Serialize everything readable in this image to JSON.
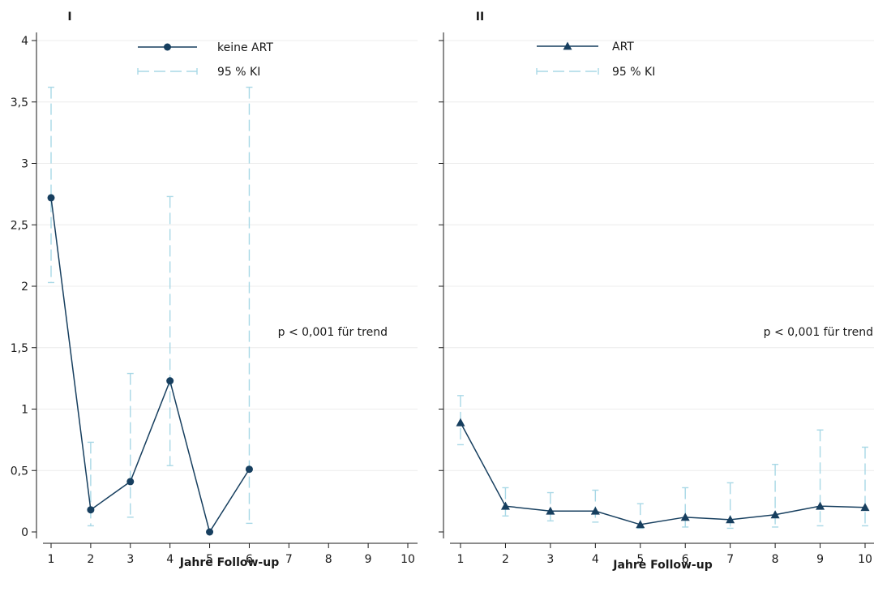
{
  "chart_data": [
    {
      "type": "line",
      "panel_label": "I",
      "xlabel": "Jahre Follow-up",
      "ylabel": "",
      "x_ticks": [
        "1",
        "2",
        "3",
        "4",
        "5",
        "6",
        "7",
        "8",
        "9",
        "10"
      ],
      "y_ticks": [
        "0",
        "0,5",
        "1",
        "1,5",
        "2",
        "2,5",
        "3",
        "3,5",
        "4"
      ],
      "ylim": [
        0,
        4
      ],
      "xlim": [
        1,
        10
      ],
      "grid": true,
      "legend_position": "top",
      "annotation": "p < 0,001 für trend",
      "series": [
        {
          "name": "keine ART",
          "marker": "circle",
          "x": [
            1,
            2,
            3,
            4,
            5,
            6
          ],
          "values": [
            2.72,
            0.18,
            0.41,
            1.23,
            0.0,
            0.51
          ],
          "ci_label": "95 % KI",
          "ci_lower": [
            2.03,
            0.05,
            0.12,
            0.54,
            0.0,
            0.07
          ],
          "ci_upper": [
            3.62,
            0.73,
            1.29,
            2.73,
            0.0,
            3.62
          ]
        }
      ],
      "colors": {
        "line": "#173f5f",
        "ci": "#a8d8e6"
      }
    },
    {
      "type": "line",
      "panel_label": "II",
      "xlabel": "Jahre Follow-up",
      "ylabel": "",
      "x_ticks": [
        "1",
        "2",
        "3",
        "4",
        "5",
        "6",
        "7",
        "8",
        "9",
        "10"
      ],
      "ylim": [
        0,
        4
      ],
      "xlim": [
        1,
        10
      ],
      "grid": true,
      "legend_position": "top",
      "annotation": "p < 0,001 für trend",
      "series": [
        {
          "name": "ART",
          "marker": "triangle",
          "x": [
            1,
            2,
            3,
            4,
            5,
            6,
            7,
            8,
            9,
            10
          ],
          "values": [
            0.89,
            0.21,
            0.17,
            0.17,
            0.06,
            0.12,
            0.1,
            0.14,
            0.21,
            0.2
          ],
          "ci_label": "95 % KI",
          "ci_lower": [
            0.71,
            0.13,
            0.09,
            0.08,
            0.03,
            0.04,
            0.03,
            0.04,
            0.05,
            0.05
          ],
          "ci_upper": [
            1.11,
            0.36,
            0.32,
            0.34,
            0.23,
            0.36,
            0.4,
            0.55,
            0.83,
            0.69
          ]
        }
      ],
      "colors": {
        "line": "#173f5f",
        "ci": "#a8d8e6"
      }
    }
  ]
}
